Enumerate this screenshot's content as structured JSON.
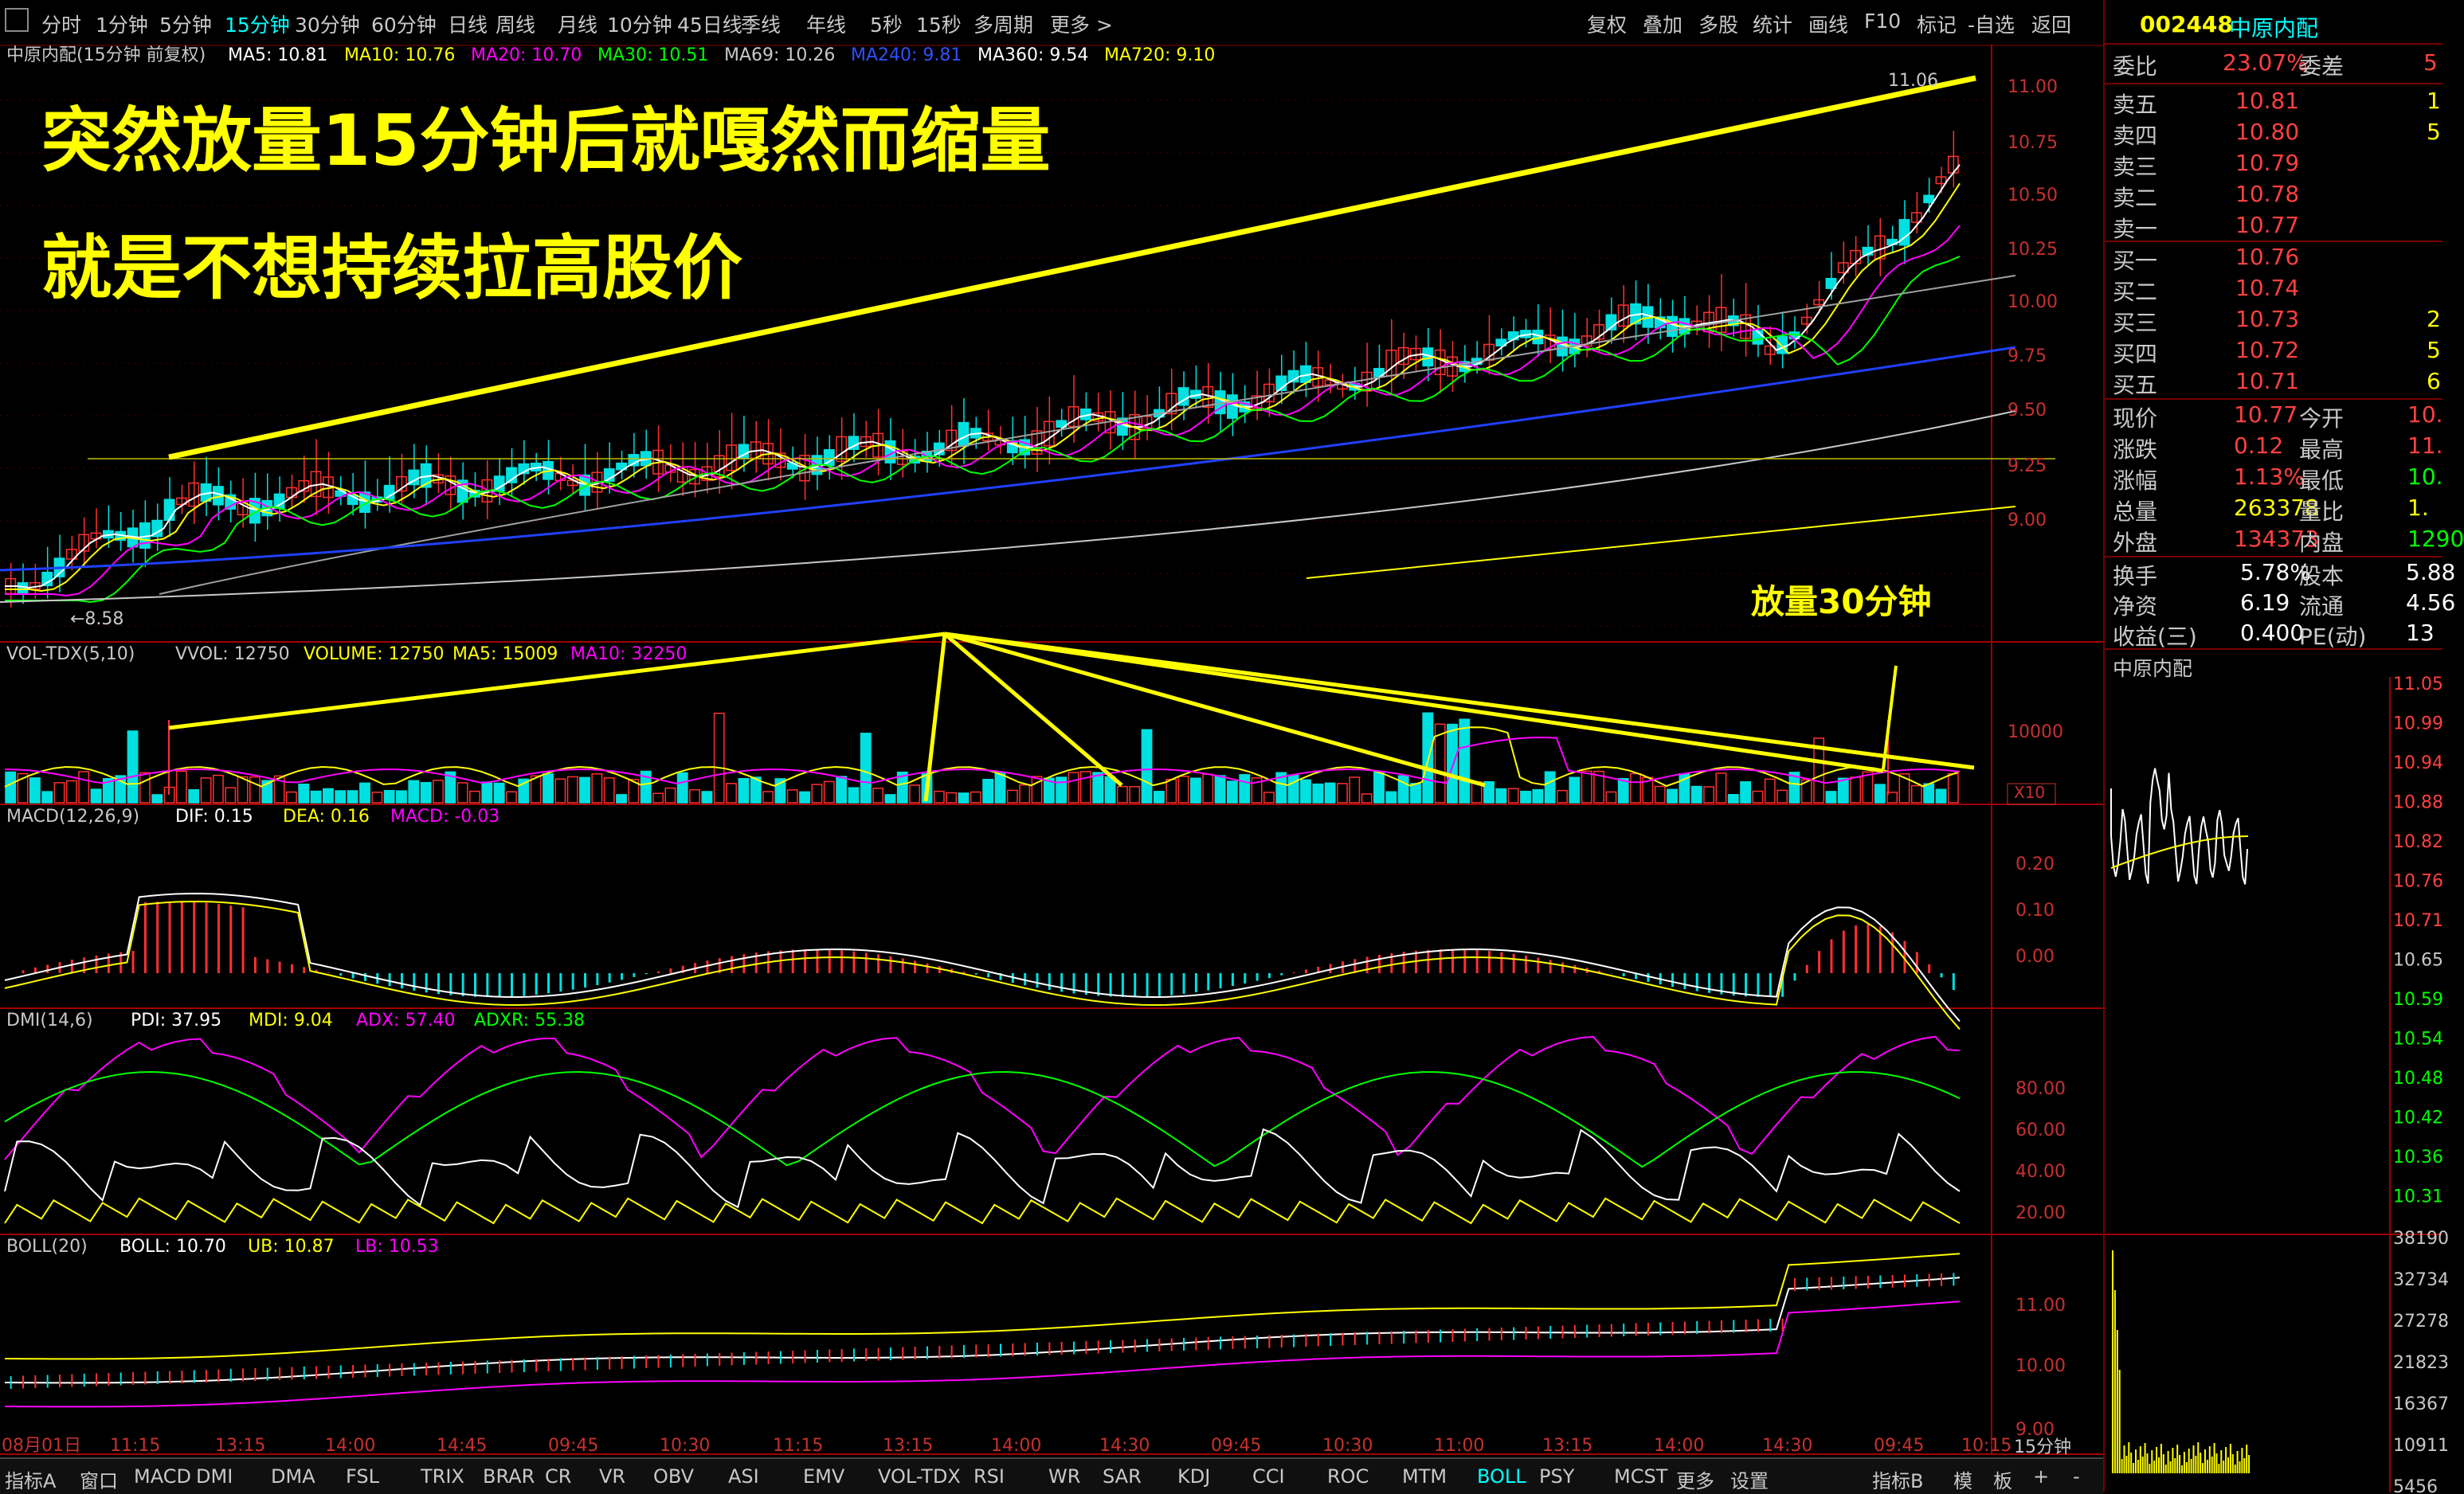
{
  "toolbar": {
    "periods": [
      "分时",
      "1分钟",
      "5分钟",
      "15分钟",
      "30分钟",
      "60分钟",
      "日线",
      "周线",
      "月线",
      "10分钟",
      "45日线",
      "季线",
      "年线",
      "5秒",
      "15秒",
      "多周期",
      "更多 >"
    ],
    "active_period": "15分钟",
    "right_buttons": [
      "复权",
      "叠加",
      "多股",
      "统计",
      "画线",
      "F10",
      "标记",
      "-自选",
      "返回"
    ]
  },
  "main_chart": {
    "legend_title": "中原内配(15分钟 前复权)",
    "ma_legend": [
      {
        "label": "MA5: 10.81",
        "color": "#ffffff"
      },
      {
        "label": "MA10: 10.76",
        "color": "#ffff00"
      },
      {
        "label": "MA20: 10.70",
        "color": "#ff00ff"
      },
      {
        "label": "MA30: 10.51",
        "color": "#00ff00"
      },
      {
        "label": "MA69: 10.26",
        "color": "#c8c8c8"
      },
      {
        "label": "MA240: 9.81",
        "color": "#3050ff"
      },
      {
        "label": "MA360: 9.54",
        "color": "#ffffff"
      },
      {
        "label": "MA720: 9.10",
        "color": "#ffff00"
      }
    ],
    "headline1": "突然放量15分钟后就嘎然而缩量",
    "headline2": "就是不想持续拉高股价",
    "annotation_volume": "放量30分钟",
    "high_label": "11.06",
    "low_label": "←8.58",
    "y_ticks": [
      "11.00",
      "10.75",
      "10.50",
      "10.25",
      "10.00",
      "9.75",
      "9.50",
      "9.25",
      "9.00"
    ]
  },
  "volume_panel": {
    "legend_name": "VOL-TDX(5,10)",
    "legend": [
      {
        "label": "VVOL: 12750",
        "color": "#c8c8c8"
      },
      {
        "label": "VOLUME: 12750",
        "color": "#ffff00"
      },
      {
        "label": "MA5: 15009",
        "color": "#ffff00"
      },
      {
        "label": "MA10: 32250",
        "color": "#ff00ff"
      }
    ],
    "y_tick": "10000",
    "unit": "X10"
  },
  "macd_panel": {
    "legend_name": "MACD(12,26,9)",
    "legend": [
      {
        "label": "DIF: 0.15",
        "color": "#ffffff"
      },
      {
        "label": "DEA: 0.16",
        "color": "#ffff00"
      },
      {
        "label": "MACD: -0.03",
        "color": "#ff00ff"
      }
    ],
    "y_ticks": [
      "0.20",
      "0.10",
      "0.00"
    ]
  },
  "dmi_panel": {
    "legend_name": "DMI(14,6)",
    "legend": [
      {
        "label": "PDI: 37.95",
        "color": "#ffffff"
      },
      {
        "label": "MDI: 9.04",
        "color": "#ffff00"
      },
      {
        "label": "ADX: 57.40",
        "color": "#ff00ff"
      },
      {
        "label": "ADXR: 55.38",
        "color": "#00ff00"
      }
    ],
    "y_ticks": [
      "80.00",
      "60.00",
      "40.00",
      "20.00"
    ]
  },
  "boll_panel": {
    "legend_name": "BOLL(20)",
    "legend": [
      {
        "label": "BOLL: 10.70",
        "color": "#ffffff"
      },
      {
        "label": "UB: 10.87",
        "color": "#ffff00"
      },
      {
        "label": "LB: 10.53",
        "color": "#ff00ff"
      }
    ],
    "y_ticks": [
      "11.00",
      "10.00",
      "9.00"
    ]
  },
  "x_axis": {
    "labels": [
      "08月01日",
      "11:15",
      "13:15",
      "14:00",
      "14:45",
      "09:45",
      "10:30",
      "11:15",
      "13:15",
      "14:00",
      "14:30",
      "09:45",
      "10:30",
      "11:00",
      "13:15",
      "14:00",
      "14:30",
      "09:45",
      "10:15"
    ],
    "period_label": "15分钟"
  },
  "bottom_tabs": {
    "items": [
      "指标A",
      "窗口",
      "MACD",
      "DMI",
      "DMA",
      "FSL",
      "TRIX",
      "BRAR",
      "CR",
      "VR",
      "OBV",
      "ASI",
      "EMV",
      "VOL-TDX",
      "RSI",
      "WR",
      "SAR",
      "KDJ",
      "CCI",
      "ROC",
      "MTM",
      "BOLL",
      "PSY",
      "MCST",
      "更多",
      "设置"
    ],
    "active": "BOLL",
    "right_items": [
      "指标B",
      "模",
      "板",
      "+",
      "-"
    ]
  },
  "quote_panel": {
    "code": "002448",
    "name": "中原内配",
    "weibi_label": "委比",
    "weibi_value": "23.07%",
    "weicha_label": "委差",
    "weicha_value": "5",
    "asks": [
      {
        "label": "卖五",
        "price": "10.81",
        "vol": "1"
      },
      {
        "label": "卖四",
        "price": "10.80",
        "vol": "5"
      },
      {
        "label": "卖三",
        "price": "10.79",
        "vol": ""
      },
      {
        "label": "卖二",
        "price": "10.78",
        "vol": ""
      },
      {
        "label": "卖一",
        "price": "10.77",
        "vol": ""
      }
    ],
    "bids": [
      {
        "label": "买一",
        "price": "10.76",
        "vol": ""
      },
      {
        "label": "买二",
        "price": "10.74",
        "vol": ""
      },
      {
        "label": "买三",
        "price": "10.73",
        "vol": "2"
      },
      {
        "label": "买四",
        "price": "10.72",
        "vol": "5"
      },
      {
        "label": "买五",
        "price": "10.71",
        "vol": "6"
      }
    ],
    "stats": [
      {
        "l1": "现价",
        "v1": "10.77",
        "c1": "#ff4040",
        "l2": "今开",
        "v2": "10.",
        "c2": "#ff4040"
      },
      {
        "l1": "涨跌",
        "v1": "0.12",
        "c1": "#ff4040",
        "l2": "最高",
        "v2": "11.",
        "c2": "#ff4040"
      },
      {
        "l1": "涨幅",
        "v1": "1.13%",
        "c1": "#ff4040",
        "l2": "最低",
        "v2": "10.",
        "c2": "#00ff00"
      },
      {
        "l1": "总量",
        "v1": "263378",
        "c1": "#ffff00",
        "l2": "量比",
        "v2": "1.",
        "c2": "#ffff00"
      },
      {
        "l1": "外盘",
        "v1": "134373",
        "c1": "#ff4040",
        "l2": "内盘",
        "v2": "1290",
        "c2": "#00ff00"
      }
    ],
    "stats2": [
      {
        "l1": "换手",
        "v1": "5.78%",
        "l2": "股本",
        "v2": "5.88"
      },
      {
        "l1": "净资",
        "v1": "6.19",
        "l2": "流通",
        "v2": "4.56"
      },
      {
        "l1": "收益(三)",
        "v1": "0.400",
        "l2": "PE(动)",
        "v2": "13"
      }
    ],
    "mini_title": "中原内配",
    "mini_price_ticks": [
      "11.05",
      "10.99",
      "10.94",
      "10.88",
      "10.82",
      "10.76",
      "10.71",
      "10.65",
      "10.59",
      "10.54",
      "10.48",
      "10.42",
      "10.36",
      "10.31"
    ],
    "mini_vol_ticks": [
      "38190",
      "32734",
      "27278",
      "21823",
      "16367",
      "10911",
      "5456"
    ]
  }
}
